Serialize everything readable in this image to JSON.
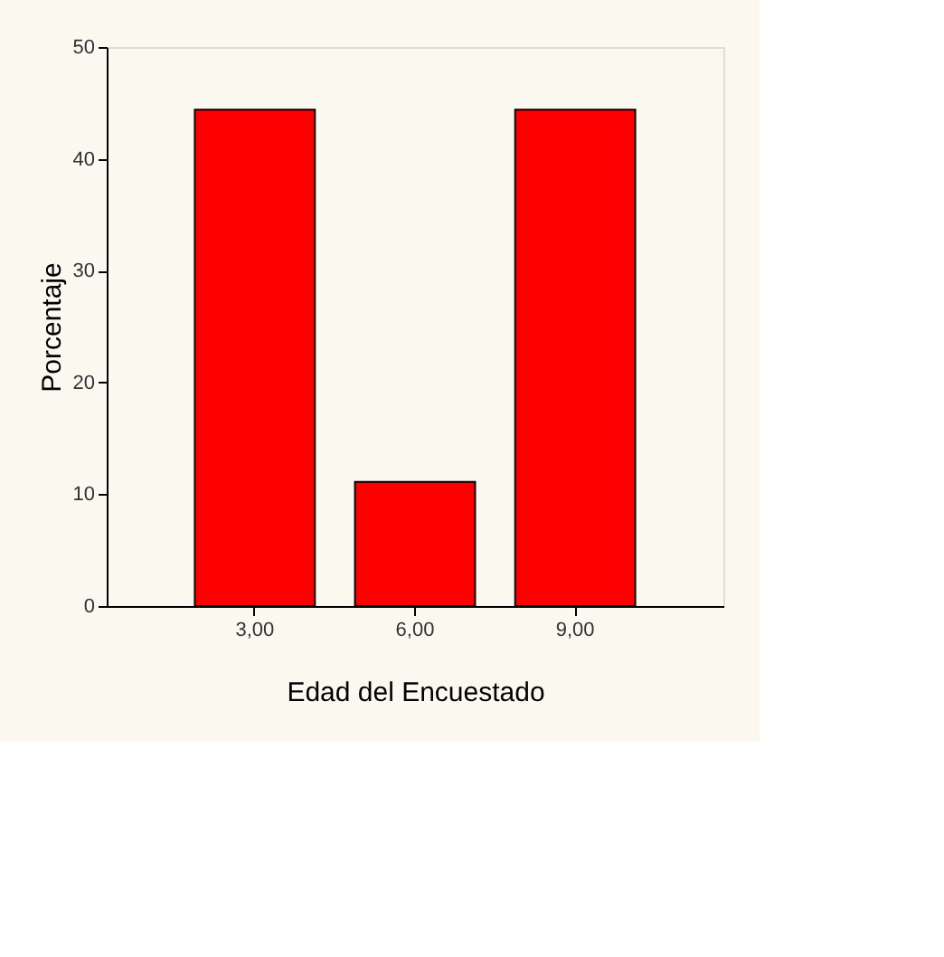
{
  "chart_data": {
    "type": "bar",
    "categories": [
      "3,00",
      "6,00",
      "9,00"
    ],
    "values": [
      44.4,
      11.1,
      44.4
    ],
    "color": "#ff0000",
    "xlabel": "Edad del Encuestado",
    "ylabel": "Porcentaje",
    "ylim": [
      0,
      50
    ],
    "yticks": [
      0,
      10,
      20,
      30,
      40,
      50
    ],
    "grid": false
  }
}
